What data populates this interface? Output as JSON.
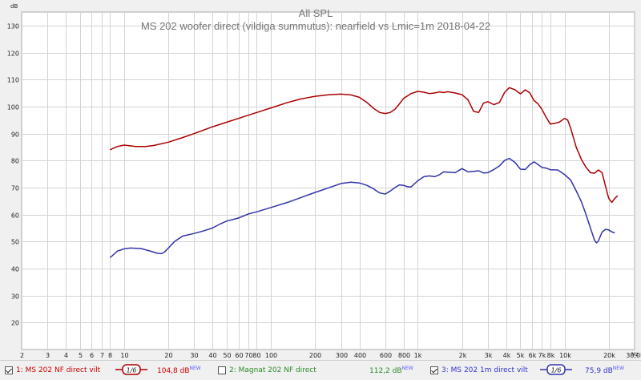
{
  "chart_data": {
    "type": "line",
    "title": "All SPL",
    "subtitle": "MS 202 woofer direct (vildiga summutus): nearfield vs Lmic=1m 2018-04-22",
    "ylabel": "dB",
    "xlabel": "",
    "x_unit_label": "Hz",
    "x_scale": "log",
    "xlim": [
      2,
      30000
    ],
    "ylim": [
      10,
      135
    ],
    "y_ticks": [
      20,
      30,
      40,
      50,
      60,
      70,
      80,
      90,
      100,
      110,
      120,
      130
    ],
    "x_ticks": [
      {
        "v": 2,
        "label": "2"
      },
      {
        "v": 3,
        "label": "3"
      },
      {
        "v": 4,
        "label": "4"
      },
      {
        "v": 5,
        "label": "5"
      },
      {
        "v": 6,
        "label": "6"
      },
      {
        "v": 7,
        "label": "7"
      },
      {
        "v": 8,
        "label": "8"
      },
      {
        "v": 10,
        "label": "10"
      },
      {
        "v": 20,
        "label": "20"
      },
      {
        "v": 30,
        "label": "30"
      },
      {
        "v": 40,
        "label": "40"
      },
      {
        "v": 50,
        "label": "50"
      },
      {
        "v": 60,
        "label": "60"
      },
      {
        "v": 70,
        "label": "70"
      },
      {
        "v": 80,
        "label": "80"
      },
      {
        "v": 100,
        "label": "100"
      },
      {
        "v": 200,
        "label": "200"
      },
      {
        "v": 300,
        "label": "300"
      },
      {
        "v": 400,
        "label": "400"
      },
      {
        "v": 600,
        "label": "600"
      },
      {
        "v": 800,
        "label": "800"
      },
      {
        "v": 1000,
        "label": "1k"
      },
      {
        "v": 2000,
        "label": "2k"
      },
      {
        "v": 3000,
        "label": "3k"
      },
      {
        "v": 4000,
        "label": "4k"
      },
      {
        "v": 5000,
        "label": "5k"
      },
      {
        "v": 6000,
        "label": "6k"
      },
      {
        "v": 7000,
        "label": "7k"
      },
      {
        "v": 8000,
        "label": "8k"
      },
      {
        "v": 10000,
        "label": "10k"
      },
      {
        "v": 20000,
        "label": "20k"
      },
      {
        "v": 30000,
        "label": "30,0k"
      }
    ],
    "grid": true,
    "series": [
      {
        "name": "1: MS 202 NF direct vilt",
        "color": "#aa0000",
        "points": [
          [
            8,
            84
          ],
          [
            9,
            85.2
          ],
          [
            10,
            85.7
          ],
          [
            12,
            85.2
          ],
          [
            14,
            85.2
          ],
          [
            16,
            85.6
          ],
          [
            20,
            86.8
          ],
          [
            25,
            88.5
          ],
          [
            30,
            90
          ],
          [
            40,
            92.5
          ],
          [
            50,
            94.2
          ],
          [
            60,
            95.6
          ],
          [
            70,
            96.8
          ],
          [
            80,
            97.8
          ],
          [
            100,
            99.5
          ],
          [
            130,
            101.5
          ],
          [
            160,
            102.8
          ],
          [
            200,
            103.8
          ],
          [
            250,
            104.4
          ],
          [
            300,
            104.6
          ],
          [
            350,
            104.3
          ],
          [
            400,
            103.4
          ],
          [
            450,
            101.5
          ],
          [
            500,
            99.3
          ],
          [
            550,
            97.8
          ],
          [
            600,
            97.4
          ],
          [
            650,
            97.8
          ],
          [
            700,
            99
          ],
          [
            750,
            101
          ],
          [
            800,
            103
          ],
          [
            900,
            104.8
          ],
          [
            1000,
            105.6
          ],
          [
            1100,
            105.3
          ],
          [
            1200,
            104.8
          ],
          [
            1300,
            105
          ],
          [
            1400,
            105.4
          ],
          [
            1500,
            105.2
          ],
          [
            1600,
            105.5
          ],
          [
            1800,
            105
          ],
          [
            2000,
            104.4
          ],
          [
            2200,
            102.5
          ],
          [
            2400,
            98.2
          ],
          [
            2600,
            97.8
          ],
          [
            2800,
            101.2
          ],
          [
            3000,
            101.8
          ],
          [
            3300,
            100.7
          ],
          [
            3600,
            101.5
          ],
          [
            3900,
            105.2
          ],
          [
            4200,
            107
          ],
          [
            4600,
            106.2
          ],
          [
            5000,
            104.7
          ],
          [
            5400,
            106.2
          ],
          [
            5800,
            105
          ],
          [
            6200,
            102.2
          ],
          [
            6600,
            101
          ],
          [
            7000,
            99
          ],
          [
            7500,
            96
          ],
          [
            8000,
            93.5
          ],
          [
            8600,
            93.8
          ],
          [
            9200,
            94.2
          ],
          [
            10000,
            95.6
          ],
          [
            10500,
            95
          ],
          [
            11000,
            92
          ],
          [
            12000,
            85
          ],
          [
            13000,
            80.5
          ],
          [
            14000,
            77.5
          ],
          [
            15000,
            75.5
          ],
          [
            16000,
            75.3
          ],
          [
            17000,
            76.5
          ],
          [
            18000,
            75.5
          ],
          [
            19000,
            70.5
          ],
          [
            20000,
            66
          ],
          [
            21000,
            64.5
          ],
          [
            22000,
            66
          ],
          [
            23000,
            67
          ]
        ]
      },
      {
        "name": "3: MS 202 1m direct vilt",
        "color": "#3333aa",
        "points": [
          [
            8,
            44
          ],
          [
            9,
            46.5
          ],
          [
            10,
            47.3
          ],
          [
            11,
            47.6
          ],
          [
            13,
            47.4
          ],
          [
            15,
            46.5
          ],
          [
            17,
            45.6
          ],
          [
            18,
            45.5
          ],
          [
            19,
            46.3
          ],
          [
            20,
            47.6
          ],
          [
            22,
            50
          ],
          [
            25,
            52
          ],
          [
            30,
            53
          ],
          [
            35,
            54
          ],
          [
            40,
            55
          ],
          [
            45,
            56.5
          ],
          [
            50,
            57.6
          ],
          [
            60,
            58.7
          ],
          [
            70,
            60.2
          ],
          [
            80,
            61
          ],
          [
            100,
            62.6
          ],
          [
            130,
            64.5
          ],
          [
            160,
            66.3
          ],
          [
            200,
            68.2
          ],
          [
            250,
            70
          ],
          [
            300,
            71.5
          ],
          [
            350,
            72
          ],
          [
            400,
            71.7
          ],
          [
            450,
            70.8
          ],
          [
            500,
            69.5
          ],
          [
            550,
            68
          ],
          [
            600,
            67.6
          ],
          [
            650,
            68.7
          ],
          [
            700,
            70
          ],
          [
            750,
            71
          ],
          [
            800,
            70.8
          ],
          [
            850,
            70.3
          ],
          [
            900,
            70.2
          ],
          [
            1000,
            72.5
          ],
          [
            1100,
            74
          ],
          [
            1200,
            74.3
          ],
          [
            1300,
            74
          ],
          [
            1400,
            74.7
          ],
          [
            1500,
            75.8
          ],
          [
            1600,
            75.7
          ],
          [
            1800,
            75.5
          ],
          [
            2000,
            77
          ],
          [
            2200,
            75.8
          ],
          [
            2400,
            76
          ],
          [
            2600,
            76.2
          ],
          [
            2800,
            75.4
          ],
          [
            3000,
            75.5
          ],
          [
            3300,
            76.7
          ],
          [
            3600,
            78
          ],
          [
            3900,
            80
          ],
          [
            4200,
            80.8
          ],
          [
            4600,
            79.3
          ],
          [
            5000,
            76.8
          ],
          [
            5400,
            76.7
          ],
          [
            5800,
            78.5
          ],
          [
            6200,
            79.5
          ],
          [
            6600,
            78.5
          ],
          [
            7000,
            77.5
          ],
          [
            7500,
            77.2
          ],
          [
            8000,
            76.6
          ],
          [
            9000,
            76.5
          ],
          [
            10000,
            74.8
          ],
          [
            11000,
            72.8
          ],
          [
            12000,
            68.8
          ],
          [
            13000,
            64.8
          ],
          [
            14000,
            60
          ],
          [
            15000,
            55
          ],
          [
            16000,
            50.5
          ],
          [
            16500,
            49.5
          ],
          [
            17000,
            50.2
          ],
          [
            18000,
            53.5
          ],
          [
            19000,
            54.5
          ],
          [
            20000,
            54.3
          ],
          [
            21000,
            53.6
          ],
          [
            22000,
            53.2
          ]
        ]
      }
    ]
  },
  "legend": {
    "items": [
      {
        "label": "1: MS 202 NF direct vilt",
        "checked": true,
        "color": "#cc0000",
        "value": "104,8 dB",
        "sup": "NEW",
        "value_color": "#cc0000",
        "has_smooth": true,
        "smooth_color": "#aa0000"
      },
      {
        "label": "2: Magnat 202 NF direct",
        "checked": false,
        "color": "#2a8a2a",
        "value": "112,2 dB",
        "sup": "NEW",
        "value_color": "#2a8a2a",
        "has_smooth": false
      },
      {
        "label": "3: MS 202 1m direct vilt",
        "checked": true,
        "color": "#3333cc",
        "value": "75,9 dB",
        "sup": "NEW",
        "value_color": "#3333cc",
        "has_smooth": true,
        "smooth_color": "#3333aa"
      }
    ],
    "smooth_symbol": "1/6"
  }
}
